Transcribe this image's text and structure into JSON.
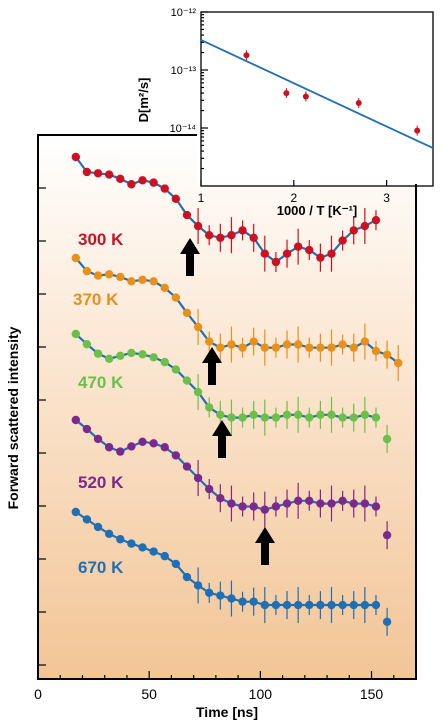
{
  "chart_data": [
    {
      "type": "scatter",
      "title": "",
      "xlabel": "Time [ns]",
      "ylabel": "Forward scattered intensity",
      "xlim": [
        0,
        170
      ],
      "xticks": [
        "0",
        "50",
        "100",
        "150"
      ],
      "y_scale": "log (offset per temperature)",
      "series": [
        {
          "name": "300 K",
          "color": "#cc1122",
          "x": [
            17,
            22,
            27,
            32,
            37,
            42,
            47,
            52,
            57,
            62,
            67,
            72,
            77,
            82,
            87,
            92,
            97,
            102,
            107,
            112,
            117,
            122,
            127,
            132,
            137,
            142,
            147,
            152
          ],
          "y": [
            1.0,
            0.72,
            0.7,
            0.68,
            0.62,
            0.55,
            0.6,
            0.57,
            0.5,
            0.4,
            0.28,
            0.22,
            0.18,
            0.17,
            0.18,
            0.2,
            0.17,
            0.12,
            0.1,
            0.12,
            0.14,
            0.13,
            0.11,
            0.12,
            0.16,
            0.2,
            0.22,
            0.25
          ]
        },
        {
          "name": "370 K",
          "color": "#e8901a",
          "x": [
            17,
            22,
            27,
            32,
            37,
            42,
            47,
            52,
            57,
            62,
            67,
            72,
            77,
            82,
            87,
            92,
            97,
            102,
            107,
            112,
            117,
            122,
            127,
            132,
            137,
            142,
            147,
            152,
            157,
            162
          ],
          "y": [
            1.0,
            0.75,
            0.68,
            0.7,
            0.66,
            0.6,
            0.62,
            0.6,
            0.52,
            0.42,
            0.3,
            0.22,
            0.16,
            0.14,
            0.15,
            0.14,
            0.16,
            0.14,
            0.14,
            0.15,
            0.15,
            0.14,
            0.14,
            0.14,
            0.15,
            0.14,
            0.16,
            0.13,
            0.12,
            0.1
          ]
        },
        {
          "name": "470 K",
          "color": "#6cc04a",
          "x": [
            17,
            22,
            27,
            32,
            37,
            42,
            47,
            52,
            57,
            62,
            67,
            72,
            77,
            82,
            87,
            92,
            97,
            102,
            107,
            112,
            117,
            122,
            127,
            132,
            137,
            142,
            147,
            152,
            157
          ],
          "y": [
            1.0,
            0.8,
            0.65,
            0.58,
            0.62,
            0.66,
            0.64,
            0.6,
            0.54,
            0.46,
            0.36,
            0.28,
            0.2,
            0.17,
            0.16,
            0.16,
            0.17,
            0.16,
            0.16,
            0.17,
            0.17,
            0.16,
            0.17,
            0.17,
            0.16,
            0.16,
            0.17,
            0.16,
            0.1
          ]
        },
        {
          "name": "520 K",
          "color": "#7a2a8c",
          "x": [
            17,
            22,
            27,
            32,
            37,
            42,
            47,
            52,
            57,
            62,
            67,
            72,
            77,
            82,
            87,
            92,
            97,
            102,
            107,
            112,
            117,
            122,
            127,
            132,
            137,
            142,
            147,
            152,
            157
          ],
          "y": [
            1.0,
            0.82,
            0.66,
            0.55,
            0.5,
            0.56,
            0.62,
            0.6,
            0.55,
            0.46,
            0.36,
            0.28,
            0.22,
            0.18,
            0.16,
            0.15,
            0.15,
            0.14,
            0.15,
            0.16,
            0.17,
            0.17,
            0.16,
            0.16,
            0.17,
            0.16,
            0.16,
            0.15,
            0.08
          ]
        },
        {
          "name": "670 K",
          "color": "#1f6fb5",
          "x": [
            17,
            22,
            27,
            32,
            37,
            42,
            47,
            52,
            57,
            62,
            67,
            72,
            77,
            82,
            87,
            92,
            97,
            102,
            107,
            112,
            117,
            122,
            127,
            132,
            137,
            142,
            147,
            152,
            157
          ],
          "y": [
            1.0,
            0.85,
            0.72,
            0.62,
            0.55,
            0.5,
            0.46,
            0.42,
            0.38,
            0.32,
            0.24,
            0.2,
            0.17,
            0.16,
            0.15,
            0.14,
            0.14,
            0.13,
            0.13,
            0.13,
            0.13,
            0.13,
            0.13,
            0.13,
            0.13,
            0.13,
            0.13,
            0.13,
            0.09
          ]
        }
      ],
      "annotations": [
        "arrow at ~68 ns (300 K)",
        "arrow at ~77 ns (370 K)",
        "arrow at ~82 ns (470 K)",
        "arrow at ~102 ns (520 K)"
      ]
    },
    {
      "type": "scatter",
      "title": "",
      "xlabel": "1000 / T [K⁻¹]",
      "ylabel": "D[m²/s]",
      "xlim": [
        1,
        3.5
      ],
      "ylim": [
        1e-15,
        1e-12
      ],
      "y_scale": "log",
      "xticks": [
        "1",
        "2",
        "3"
      ],
      "yticks": [
        "10⁻¹²",
        "10⁻¹³",
        "10⁻¹⁴"
      ],
      "points": {
        "x": [
          1.49,
          1.92,
          2.13,
          2.7,
          3.33
        ],
        "y": [
          1.8e-13,
          4e-14,
          3.5e-14,
          2.7e-14,
          9e-15
        ]
      },
      "fit_line": {
        "x": [
          1.0,
          3.5
        ],
        "y": [
          3.3e-13,
          4.5e-15
        ]
      },
      "point_color": "#cc1122",
      "line_color": "#1f6fb5"
    }
  ]
}
